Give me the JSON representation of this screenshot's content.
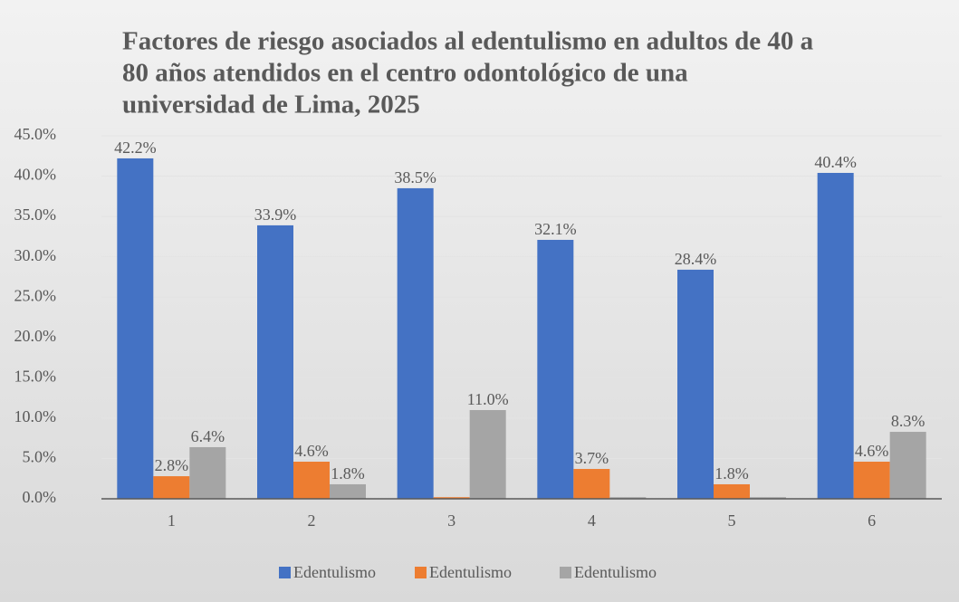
{
  "chart_data": {
    "type": "bar",
    "title_lines": [
      "Factores de riesgo asociados al edentulismo en adultos de 40 a",
      "80 años atendidos en el centro odontológico de una",
      "universidad de Lima, 2025"
    ],
    "categories": [
      "1",
      "2",
      "3",
      "4",
      "5",
      "6"
    ],
    "series": [
      {
        "name": "Edentulismo",
        "color": "#4472c4",
        "values": [
          42.2,
          33.9,
          38.5,
          32.1,
          28.4,
          40.4
        ],
        "value_labels": [
          "42.2%",
          "33.9%",
          "38.5%",
          "32.1%",
          "28.4%",
          "40.4%"
        ]
      },
      {
        "name": "Edentulismo",
        "color": "#ed7d31",
        "values": [
          2.8,
          4.6,
          0.2,
          3.7,
          1.8,
          4.6
        ],
        "value_labels": [
          "2.8%",
          "4.6%",
          null,
          "3.7%",
          "1.8%",
          "4.6%"
        ]
      },
      {
        "name": "Edentulismo",
        "color": "#a5a5a5",
        "values": [
          6.4,
          1.8,
          11.0,
          0.2,
          0.2,
          8.3
        ],
        "value_labels": [
          "6.4%",
          "1.8%",
          "11.0%",
          null,
          null,
          "8.3%"
        ]
      }
    ],
    "ylim": [
      0,
      45
    ],
    "yticks": [
      {
        "value": 0,
        "label": "0.0%"
      },
      {
        "value": 5,
        "label": "5.0%"
      },
      {
        "value": 10,
        "label": "10.0%"
      },
      {
        "value": 15,
        "label": "15.0%"
      },
      {
        "value": 20,
        "label": "20.0%"
      },
      {
        "value": 25,
        "label": "25.0%"
      },
      {
        "value": 30,
        "label": "30.0%"
      },
      {
        "value": 35,
        "label": "35.0%"
      },
      {
        "value": 40,
        "label": "40.0%"
      },
      {
        "value": 45,
        "label": "45.0%"
      }
    ],
    "grid": true,
    "legend": "bottom"
  }
}
